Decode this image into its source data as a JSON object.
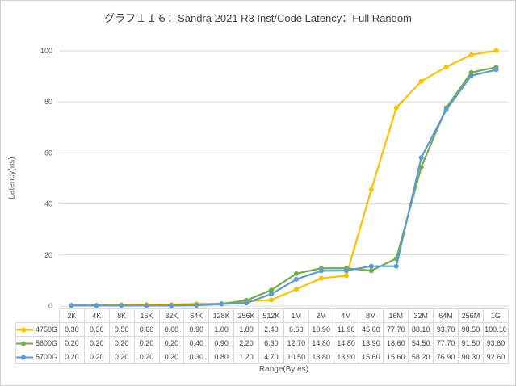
{
  "chart_data": {
    "type": "line",
    "title": "グラフ１１６：Sandra 2021 R3 Inst/Code Latency：Full Random",
    "xlabel": "Range(Bytes)",
    "ylabel": "Latency(ns)",
    "ylim": [
      0,
      100
    ],
    "yticks": [
      0,
      20,
      40,
      60,
      80,
      100
    ],
    "grid": true,
    "legend_position": "table-left",
    "marker": "circle",
    "categories": [
      "2K",
      "4K",
      "8K",
      "16K",
      "32K",
      "64K",
      "128K",
      "256K",
      "512K",
      "1M",
      "2M",
      "4M",
      "8M",
      "16M",
      "32M",
      "64M",
      "256M",
      "1G"
    ],
    "series": [
      {
        "name": "4750G",
        "color": "#FFC000",
        "values": [
          0.3,
          0.3,
          0.5,
          0.6,
          0.6,
          0.9,
          1.0,
          1.8,
          2.4,
          6.6,
          10.9,
          11.9,
          45.6,
          77.7,
          88.1,
          93.7,
          98.5,
          100.1
        ]
      },
      {
        "name": "5600G",
        "color": "#70AD47",
        "values": [
          0.2,
          0.2,
          0.2,
          0.2,
          0.2,
          0.4,
          0.9,
          2.2,
          6.3,
          12.7,
          14.8,
          14.8,
          13.9,
          18.6,
          54.5,
          77.7,
          91.5,
          93.6
        ]
      },
      {
        "name": "5700G",
        "color": "#5B9BD5",
        "values": [
          0.2,
          0.2,
          0.2,
          0.2,
          0.2,
          0.3,
          0.8,
          1.2,
          4.7,
          10.5,
          13.8,
          13.9,
          15.6,
          15.6,
          58.2,
          76.9,
          90.3,
          92.6
        ]
      }
    ],
    "palette": {
      "grid": "#D9D9D9",
      "tick_text": "#595959",
      "axis_title_text": "#595959",
      "title_text": "#404040",
      "table_border": "#D9D9D9",
      "table_text": "#404040",
      "frame_border": "#D0D0D0"
    }
  }
}
